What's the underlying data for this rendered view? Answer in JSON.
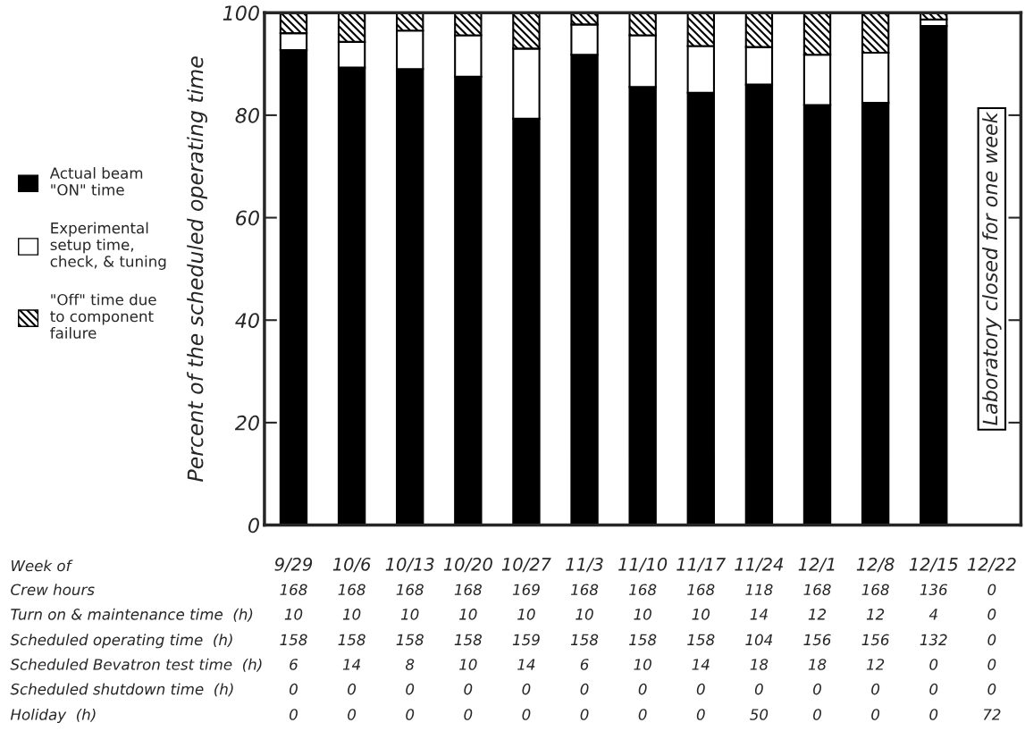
{
  "chart_data": {
    "type": "bar",
    "stacked": true,
    "ylabel": "Percent of the scheduled operating time",
    "categories": [
      "9/29",
      "10/6",
      "10/13",
      "10/20",
      "10/27",
      "11/3",
      "11/10",
      "11/17",
      "11/24",
      "12/1",
      "12/8",
      "12/15",
      "12/22"
    ],
    "series": [
      {
        "name": "Actual beam\n\"ON\" time",
        "color": "#000000",
        "values": [
          92.7,
          89.3,
          89.0,
          87.5,
          79.3,
          91.8,
          85.5,
          84.4,
          86.0,
          82.0,
          82.4,
          97.4,
          null
        ]
      },
      {
        "name": "Experimental\nsetup time,\ncheck, & tuning",
        "color": "#ffffff",
        "values": [
          3.3,
          5.0,
          7.5,
          8.1,
          13.7,
          5.9,
          10.1,
          9.1,
          7.3,
          9.8,
          9.8,
          1.3,
          null
        ]
      },
      {
        "name": "\"Off\" time due\nto component\nfailure",
        "color": "#000000",
        "values": [
          4.0,
          5.7,
          3.5,
          4.4,
          7.0,
          2.3,
          4.4,
          6.5,
          6.7,
          8.2,
          7.8,
          1.3,
          null
        ]
      }
    ],
    "ylim": [
      0,
      100
    ],
    "yticks": [
      0,
      20,
      40,
      60,
      80,
      100
    ],
    "grid": false,
    "legend": "left",
    "annotations": [
      "Laboratory closed for one week",
      "Week of",
      "Crew hours",
      "168",
      "168",
      "168",
      "168",
      "169",
      "168",
      "168",
      "168",
      "118",
      "168",
      "168",
      "136",
      "0",
      "Turn on & maintenance time  (h)",
      "10",
      "10",
      "10",
      "10",
      "10",
      "10",
      "10",
      "10",
      "14",
      "12",
      "12",
      "4",
      "0",
      "Scheduled operating time  (h)",
      "158",
      "158",
      "158",
      "158",
      "159",
      "158",
      "158",
      "158",
      "104",
      "156",
      "156",
      "132",
      "0",
      "Scheduled Bevatron test time  (h)",
      "6",
      "14",
      "8",
      "10",
      "14",
      "6",
      "10",
      "14",
      "18",
      "18",
      "12",
      "0",
      "0",
      "Scheduled shutdown time  (h)",
      "0",
      "0",
      "0",
      "0",
      "0",
      "0",
      "0",
      "0",
      "0",
      "0",
      "0",
      "0",
      "0",
      "Holiday  (h)",
      "0",
      "0",
      "0",
      "0",
      "0",
      "0",
      "0",
      "0",
      "50",
      "0",
      "0",
      "0",
      "72"
    ]
  }
}
